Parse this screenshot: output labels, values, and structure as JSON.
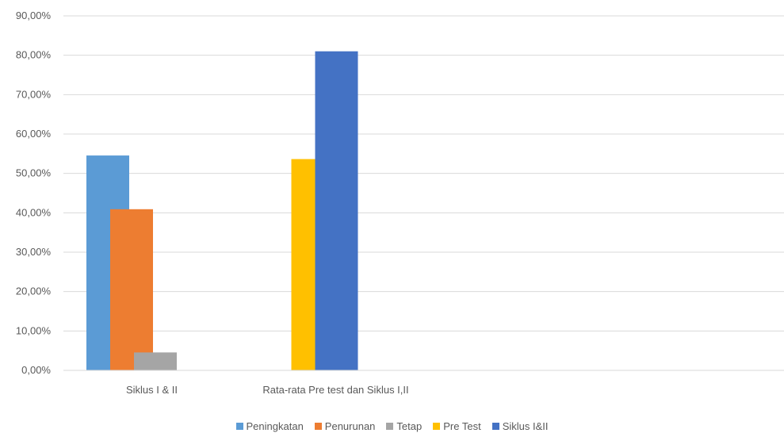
{
  "chart_data": {
    "type": "bar",
    "categories": [
      "Siklus I & II",
      "Rata-rata Pre test dan Siklus I,II"
    ],
    "ylim": [
      0,
      90
    ],
    "y_ticks": [
      "0,00%",
      "10,00%",
      "20,00%",
      "30,00%",
      "40,00%",
      "50,00%",
      "60,00%",
      "70,00%",
      "80,00%",
      "90,00%"
    ],
    "grid": true,
    "legend_position": "bottom",
    "series": [
      {
        "name": "Peningkatan",
        "color": "#5B9BD5",
        "values": [
          54.55,
          null
        ]
      },
      {
        "name": "Penurunan",
        "color": "#ED7D31",
        "values": [
          40.91,
          null
        ]
      },
      {
        "name": "Tetap",
        "color": "#A5A5A5",
        "values": [
          4.55,
          null
        ]
      },
      {
        "name": "Pre Test",
        "color": "#FFC000",
        "values": [
          null,
          53.64
        ]
      },
      {
        "name": "Siklus I&II",
        "color": "#4472C4",
        "values": [
          null,
          81.0
        ]
      }
    ]
  }
}
